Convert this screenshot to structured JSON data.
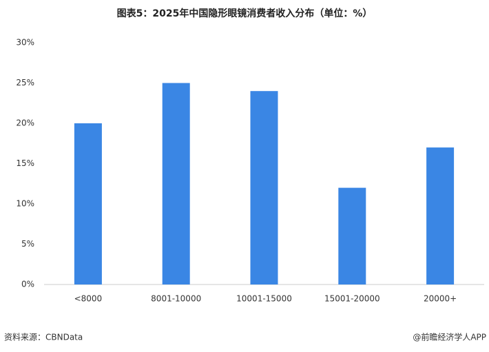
{
  "chart_data": {
    "type": "bar",
    "title": "图表5：2025年中国隐形眼镜消费者收入分布（单位：%）",
    "categories": [
      "<8000",
      "8001-10000",
      "10001-15000",
      "15001-20000",
      "20000+"
    ],
    "values": [
      20,
      25,
      24,
      12,
      17
    ],
    "color": "#3a86e4",
    "ylim": [
      0,
      30
    ],
    "yticks": [
      {
        "value": 0,
        "label": "0%"
      },
      {
        "value": 5,
        "label": "5%"
      },
      {
        "value": 10,
        "label": "10%"
      },
      {
        "value": 15,
        "label": "15%"
      },
      {
        "value": 20,
        "label": "20%"
      },
      {
        "value": 25,
        "label": "25%"
      },
      {
        "value": 30,
        "label": "30%"
      }
    ],
    "grid": false,
    "source": "资料来源：CBNData",
    "credit": "@前瞻经济学人APP"
  }
}
